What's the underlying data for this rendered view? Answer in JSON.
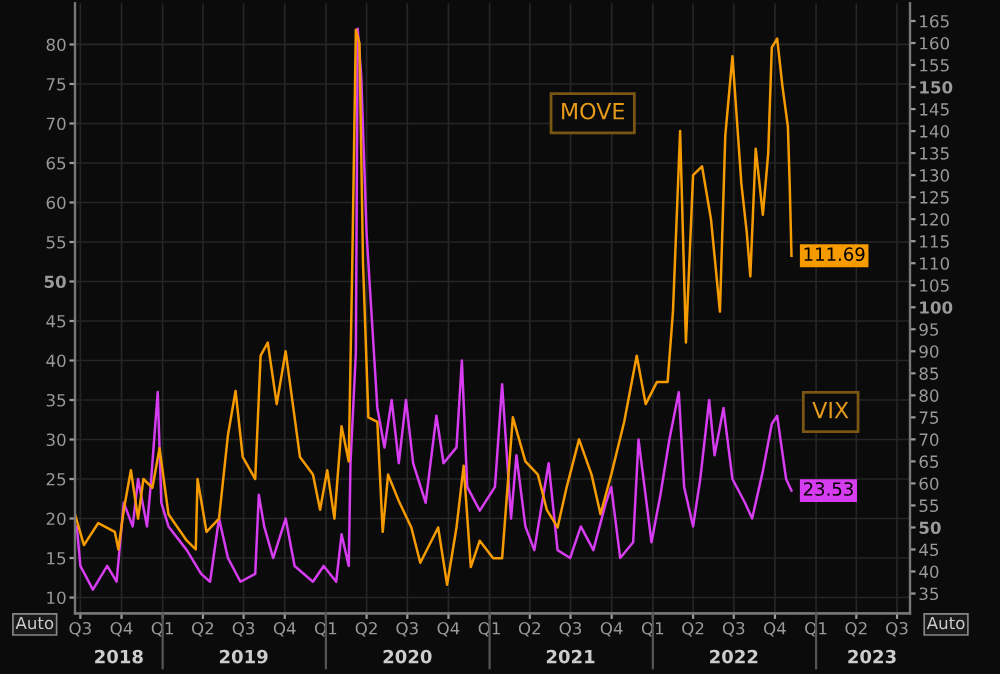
{
  "chart_data": {
    "type": "line",
    "xlim": [
      "2018-06-19",
      "2023-07-30"
    ],
    "xticks": [
      {
        "value": "2018-07-01",
        "label": "Q3"
      },
      {
        "value": "2018-10-01",
        "label": "Q4"
      },
      {
        "value": "2019-01-01",
        "label": "Q1"
      },
      {
        "value": "2019-04-01",
        "label": "Q2"
      },
      {
        "value": "2019-07-01",
        "label": "Q3"
      },
      {
        "value": "2019-10-01",
        "label": "Q4"
      },
      {
        "value": "2020-01-01",
        "label": "Q1"
      },
      {
        "value": "2020-04-01",
        "label": "Q2"
      },
      {
        "value": "2020-07-01",
        "label": "Q3"
      },
      {
        "value": "2020-10-01",
        "label": "Q4"
      },
      {
        "value": "2021-01-01",
        "label": "Q1"
      },
      {
        "value": "2021-04-01",
        "label": "Q2"
      },
      {
        "value": "2021-07-01",
        "label": "Q3"
      },
      {
        "value": "2021-10-01",
        "label": "Q4"
      },
      {
        "value": "2022-01-01",
        "label": "Q1"
      },
      {
        "value": "2022-04-01",
        "label": "Q2"
      },
      {
        "value": "2022-07-01",
        "label": "Q3"
      },
      {
        "value": "2022-10-01",
        "label": "Q4"
      },
      {
        "value": "2023-01-01",
        "label": "Q1"
      },
      {
        "value": "2023-04-01",
        "label": "Q2"
      },
      {
        "value": "2023-07-01",
        "label": "Q3"
      }
    ],
    "x2lim": [
      "2018-06-19",
      "2023-07-30"
    ],
    "x2ticks": [
      {
        "value": "2018-09-25",
        "label": "2018"
      },
      {
        "value": "2019-01-01",
        "label": null
      },
      {
        "value": "2019-07-01",
        "label": "2019"
      },
      {
        "value": "2020-01-01",
        "label": null
      },
      {
        "value": "2020-07-01",
        "label": "2020"
      },
      {
        "value": "2021-01-01",
        "label": null
      },
      {
        "value": "2021-07-01",
        "label": "2021"
      },
      {
        "value": "2022-01-01",
        "label": null
      },
      {
        "value": "2022-07-01",
        "label": "2022"
      },
      {
        "value": "2023-01-01",
        "label": null
      },
      {
        "value": "2023-05-06",
        "label": "2023"
      }
    ],
    "ylim": [
      8,
      85.2
    ],
    "yticks": [
      10,
      15,
      20,
      25,
      30,
      35,
      40,
      45,
      50,
      55,
      60,
      65,
      70,
      75,
      80
    ],
    "y2lim": [
      30.5,
      169
    ],
    "y2ticks": [
      35,
      40,
      45,
      50,
      55,
      60,
      65,
      70,
      75,
      80,
      85,
      90,
      95,
      100,
      105,
      110,
      115,
      120,
      125,
      130,
      135,
      140,
      145,
      150,
      155,
      160,
      165
    ],
    "grid": true,
    "legend": false,
    "marker": "none",
    "line_style": "solid",
    "annotations": [
      "Auto",
      "Auto"
    ],
    "series": [
      {
        "name": "MOVE",
        "color": "#f59b00",
        "axis": "y2",
        "x": [
          "2018-06-19",
          "2018-07-09",
          "2018-08-10",
          "2018-09-16",
          "2018-09-24",
          "2018-10-06",
          "2018-10-22",
          "2018-11-07",
          "2018-11-19",
          "2018-12-09",
          "2018-12-25",
          "2019-01-14",
          "2019-02-24",
          "2019-03-16",
          "2019-03-20",
          "2019-04-09",
          "2019-05-07",
          "2019-05-27",
          "2019-06-13",
          "2019-06-29",
          "2019-07-27",
          "2019-08-08",
          "2019-08-24",
          "2019-09-13",
          "2019-10-03",
          "2019-10-19",
          "2019-11-04",
          "2019-12-03",
          "2019-12-19",
          "2020-01-04",
          "2020-01-20",
          "2020-02-05",
          "2020-02-21",
          "2020-02-29",
          "2020-03-08",
          "2020-03-16",
          "2020-03-24",
          "2020-04-05",
          "2020-04-25",
          "2020-05-07",
          "2020-05-19",
          "2020-06-12",
          "2020-07-10",
          "2020-07-30",
          "2020-09-08",
          "2020-09-28",
          "2020-10-19",
          "2020-11-04",
          "2020-11-20",
          "2020-12-10",
          "2021-01-09",
          "2021-01-29",
          "2021-02-22",
          "2021-03-22",
          "2021-04-19",
          "2021-05-09",
          "2021-06-02",
          "2021-06-22",
          "2021-07-20",
          "2021-08-17",
          "2021-09-06",
          "2021-09-30",
          "2021-10-29",
          "2021-11-26",
          "2021-12-16",
          "2022-01-10",
          "2022-02-03",
          "2022-02-15",
          "2022-03-03",
          "2022-03-16",
          "2022-04-01",
          "2022-04-21",
          "2022-05-11",
          "2022-05-31",
          "2022-06-12",
          "2022-06-28",
          "2022-07-18",
          "2022-07-30",
          "2022-08-07",
          "2022-08-19",
          "2022-09-04",
          "2022-09-16",
          "2022-09-24",
          "2022-10-06",
          "2022-10-18",
          "2022-10-30",
          "2022-11-03",
          "2022-11-07"
        ],
        "values": [
          53,
          46,
          51,
          49,
          45,
          54,
          63,
          52,
          61,
          59,
          68,
          53,
          47,
          45,
          61,
          49,
          52,
          71,
          81,
          66,
          61,
          89,
          92,
          78,
          90,
          78,
          66,
          62,
          54,
          63,
          52,
          73,
          65,
          110,
          163,
          160,
          110,
          75,
          74,
          49,
          62,
          56,
          50,
          42,
          50,
          37,
          50,
          64,
          41,
          47,
          43,
          43,
          75,
          65,
          62,
          54,
          50,
          59,
          70,
          62,
          53,
          62,
          74,
          89,
          78,
          83,
          83,
          99,
          140,
          92,
          130,
          132,
          120,
          99,
          139,
          157,
          128,
          117,
          107,
          136,
          121,
          135,
          159,
          161,
          150,
          141,
          128,
          111.69
        ],
        "value_labels": [
          null,
          null,
          null,
          null,
          null,
          null,
          null,
          null,
          null,
          null,
          null,
          null,
          null,
          null,
          null,
          null,
          null,
          null,
          null,
          null,
          null,
          null,
          null,
          null,
          null,
          null,
          null,
          null,
          null,
          null,
          null,
          null,
          null,
          null,
          null,
          null,
          null,
          null,
          null,
          null,
          null,
          null,
          null,
          null,
          null,
          null,
          null,
          null,
          null,
          null,
          null,
          null,
          null,
          null,
          null,
          null,
          null,
          null,
          null,
          null,
          null,
          null,
          null,
          null,
          null,
          null,
          null,
          null,
          null,
          null,
          null,
          null,
          null,
          null,
          null,
          null,
          null,
          null,
          null,
          null,
          null,
          null,
          null,
          null,
          null,
          null,
          null,
          "111.69"
        ]
      },
      {
        "name": "VIX",
        "color": "#d63cf0",
        "x": [
          "2018-06-23",
          "2018-07-01",
          "2018-07-29",
          "2018-08-30",
          "2018-09-20",
          "2018-10-06",
          "2018-10-26",
          "2018-11-07",
          "2018-11-27",
          "2018-12-05",
          "2018-12-21",
          "2018-12-29",
          "2019-01-14",
          "2019-02-24",
          "2019-03-28",
          "2019-04-17",
          "2019-05-07",
          "2019-05-27",
          "2019-06-24",
          "2019-07-27",
          "2019-08-04",
          "2019-08-16",
          "2019-09-05",
          "2019-10-03",
          "2019-10-23",
          "2019-12-03",
          "2019-12-27",
          "2020-01-24",
          "2020-02-05",
          "2020-02-21",
          "2020-02-25",
          "2020-03-08",
          "2020-03-12",
          "2020-03-20",
          "2020-04-01",
          "2020-04-13",
          "2020-04-25",
          "2020-05-11",
          "2020-05-27",
          "2020-06-12",
          "2020-06-28",
          "2020-07-14",
          "2020-08-11",
          "2020-09-04",
          "2020-09-20",
          "2020-10-19",
          "2020-10-31",
          "2020-11-12",
          "2020-12-10",
          "2021-01-13",
          "2021-01-29",
          "2021-02-18",
          "2021-03-02",
          "2021-03-22",
          "2021-04-11",
          "2021-05-13",
          "2021-06-02",
          "2021-06-30",
          "2021-07-24",
          "2021-08-21",
          "2021-09-18",
          "2021-09-30",
          "2021-10-20",
          "2021-11-18",
          "2021-11-30",
          "2021-12-29",
          "2022-01-18",
          "2022-02-07",
          "2022-02-28",
          "2022-03-12",
          "2022-04-01",
          "2022-04-17",
          "2022-05-07",
          "2022-05-19",
          "2022-06-08",
          "2022-06-28",
          "2022-07-26",
          "2022-08-11",
          "2022-09-04",
          "2022-09-24",
          "2022-10-06",
          "2022-10-26",
          "2022-11-07"
        ],
        "values": [
          19,
          14,
          11,
          14,
          12,
          22,
          19,
          25,
          19,
          24,
          36,
          22,
          19,
          16,
          13,
          12,
          20,
          15,
          12,
          13,
          23,
          19,
          15,
          20,
          14,
          12,
          14,
          12,
          18,
          14,
          27,
          41,
          82,
          76,
          56,
          45,
          34,
          29,
          35,
          27,
          35,
          27,
          22,
          33,
          27,
          29,
          40,
          24,
          21,
          24,
          37,
          20,
          28,
          19,
          16,
          27,
          16,
          15,
          19,
          16,
          22,
          24,
          15,
          17,
          30,
          17,
          23,
          30,
          36,
          24,
          19,
          25,
          35,
          28,
          34,
          25,
          22,
          20,
          26,
          32,
          33,
          25,
          23.53
        ],
        "value_labels": [
          null,
          null,
          null,
          null,
          null,
          null,
          null,
          null,
          null,
          null,
          null,
          null,
          null,
          null,
          null,
          null,
          null,
          null,
          null,
          null,
          null,
          null,
          null,
          null,
          null,
          null,
          null,
          null,
          null,
          null,
          null,
          null,
          null,
          null,
          null,
          null,
          null,
          null,
          null,
          null,
          null,
          null,
          null,
          null,
          null,
          null,
          null,
          null,
          null,
          null,
          null,
          null,
          null,
          null,
          null,
          null,
          null,
          null,
          null,
          null,
          null,
          null,
          null,
          null,
          null,
          null,
          null,
          null,
          null,
          null,
          null,
          null,
          null,
          null,
          null,
          null,
          null,
          null,
          null,
          null,
          null,
          null,
          "23.53"
        ]
      }
    ]
  }
}
